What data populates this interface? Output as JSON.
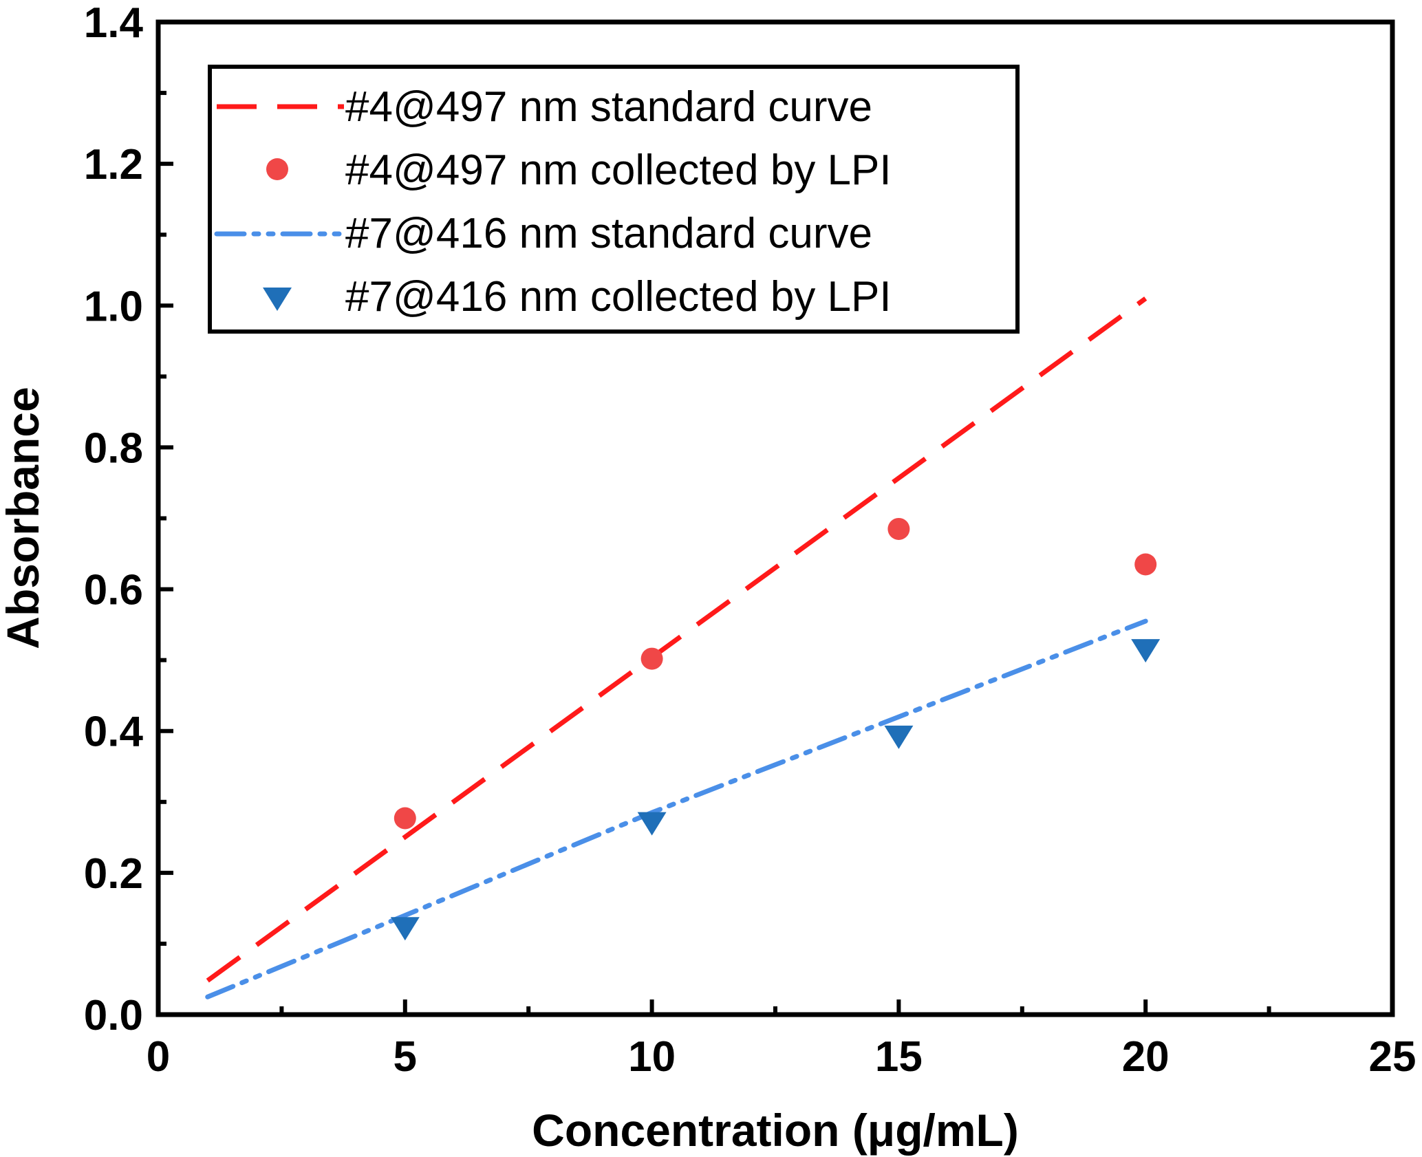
{
  "chart_data": {
    "type": "scatter",
    "xlabel": "Concentration (μg/mL)",
    "ylabel": "Absorbance",
    "xlim": [
      0,
      25
    ],
    "ylim": [
      0,
      1.4
    ],
    "x_ticks": [
      0,
      5,
      10,
      15,
      20,
      25
    ],
    "x_tick_labels": [
      "0",
      "5",
      "10",
      "15",
      "20",
      "25"
    ],
    "y_ticks": [
      0,
      0.2,
      0.4,
      0.6,
      0.8,
      1.0,
      1.2,
      1.4
    ],
    "y_tick_labels": [
      "0.0",
      "0.2",
      "0.4",
      "0.6",
      "0.8",
      "1.0",
      "1.2",
      "1.4"
    ],
    "grid": false,
    "legend_position": "top-left",
    "series": [
      {
        "name": "#4@497 nm standard curve",
        "kind": "line",
        "style": "dashed",
        "color": "#ff1a1a",
        "x": [
          1,
          20
        ],
        "y": [
          0.048,
          1.01
        ]
      },
      {
        "name": "#4@497 nm collected by LPI",
        "kind": "scatter",
        "marker": "circle",
        "color": "#f04747",
        "x": [
          5,
          10,
          15,
          20
        ],
        "y": [
          0.277,
          0.502,
          0.685,
          0.635
        ]
      },
      {
        "name": "#7@416 nm standard curve",
        "kind": "line",
        "style": "dash-dot-dot",
        "color": "#4a8fe8",
        "x": [
          1,
          5,
          10,
          15,
          20
        ],
        "y": [
          0.025,
          0.14,
          0.285,
          0.42,
          0.555
        ]
      },
      {
        "name": "#7@416 nm collected by LPI",
        "kind": "scatter",
        "marker": "triangle-down",
        "color": "#1f6fb8",
        "x": [
          5,
          10,
          15,
          20
        ],
        "y": [
          0.124,
          0.272,
          0.394,
          0.516
        ]
      }
    ]
  }
}
